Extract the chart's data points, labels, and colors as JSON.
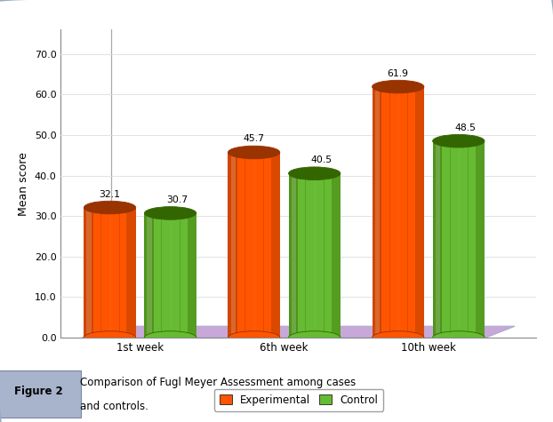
{
  "categories": [
    "1st week",
    "6th week",
    "10th week"
  ],
  "experimental": [
    32.1,
    45.7,
    61.9
  ],
  "control": [
    30.7,
    40.5,
    48.5
  ],
  "exp_color_main": "#FF5500",
  "exp_color_dark": "#993300",
  "exp_color_light": "#FF7744",
  "ctrl_color_main": "#66BB33",
  "ctrl_color_dark": "#336600",
  "ctrl_color_light": "#88CC55",
  "floor_color": "#C8A8D8",
  "floor_edge": "#AAAACC",
  "ylabel": "Mean score",
  "ylim_max": 76,
  "yticks": [
    0.0,
    10.0,
    20.0,
    30.0,
    40.0,
    50.0,
    60.0,
    70.0
  ],
  "legend_exp": "Experimental",
  "legend_ctrl": "Control",
  "figure_label": "Figure 2",
  "figure_caption_line1": "Comparison of Fugl Meyer Assessment among cases",
  "figure_caption_line2": "and controls.",
  "background_color": "#FFFFFF",
  "border_color": "#99AABB"
}
